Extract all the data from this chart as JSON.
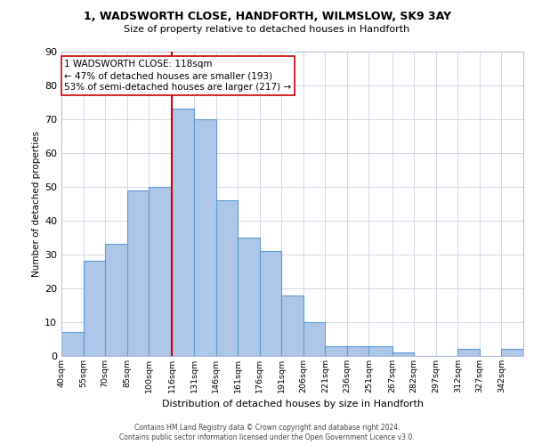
{
  "title1": "1, WADSWORTH CLOSE, HANDFORTH, WILMSLOW, SK9 3AY",
  "title2": "Size of property relative to detached houses in Handforth",
  "xlabel": "Distribution of detached houses by size in Handforth",
  "ylabel": "Number of detached properties",
  "bar_labels": [
    "40sqm",
    "55sqm",
    "70sqm",
    "85sqm",
    "100sqm",
    "116sqm",
    "131sqm",
    "146sqm",
    "161sqm",
    "176sqm",
    "191sqm",
    "206sqm",
    "221sqm",
    "236sqm",
    "251sqm",
    "267sqm",
    "282sqm",
    "297sqm",
    "312sqm",
    "327sqm",
    "342sqm"
  ],
  "hist_values": [
    7,
    28,
    33,
    49,
    50,
    73,
    70,
    46,
    35,
    31,
    18,
    10,
    3,
    3,
    3,
    1,
    0,
    0,
    2,
    0,
    2
  ],
  "bin_edges": [
    40,
    55,
    70,
    85,
    100,
    116,
    131,
    146,
    161,
    176,
    191,
    206,
    221,
    236,
    251,
    267,
    282,
    297,
    312,
    327,
    342,
    357
  ],
  "bar_color": "#aec6e8",
  "bar_edge_color": "#5b9bd5",
  "vline_x": 116,
  "vline_color": "#cc0000",
  "annotation_text": "1 WADSWORTH CLOSE: 118sqm\n← 47% of detached houses are smaller (193)\n53% of semi-detached houses are larger (217) →",
  "ylim": [
    0,
    90
  ],
  "yticks": [
    0,
    10,
    20,
    30,
    40,
    50,
    60,
    70,
    80,
    90
  ],
  "bg_color": "#ffffff",
  "grid_color": "#d0d8e8",
  "footer1": "Contains HM Land Registry data © Crown copyright and database right 2024.",
  "footer2": "Contains public sector information licensed under the Open Government Licence v3.0."
}
